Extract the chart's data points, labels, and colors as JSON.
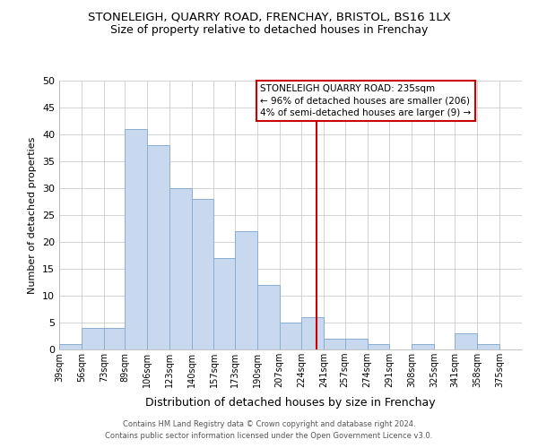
{
  "title": "STONELEIGH, QUARRY ROAD, FRENCHAY, BRISTOL, BS16 1LX",
  "subtitle": "Size of property relative to detached houses in Frenchay",
  "xlabel": "Distribution of detached houses by size in Frenchay",
  "ylabel": "Number of detached properties",
  "bins": [
    39,
    56,
    73,
    89,
    106,
    123,
    140,
    157,
    173,
    190,
    207,
    224,
    241,
    257,
    274,
    291,
    308,
    325,
    341,
    358,
    375
  ],
  "bin_labels": [
    "39sqm",
    "56sqm",
    "73sqm",
    "89sqm",
    "106sqm",
    "123sqm",
    "140sqm",
    "157sqm",
    "173sqm",
    "190sqm",
    "207sqm",
    "224sqm",
    "241sqm",
    "257sqm",
    "274sqm",
    "291sqm",
    "308sqm",
    "325sqm",
    "341sqm",
    "358sqm",
    "375sqm"
  ],
  "values": [
    1,
    4,
    4,
    41,
    38,
    30,
    28,
    17,
    22,
    12,
    5,
    6,
    2,
    2,
    1,
    0,
    1,
    0,
    3,
    1,
    0
  ],
  "bar_color": "#c8d9ef",
  "bar_edge_color": "#88aed0",
  "vline_x": 235,
  "vline_color": "#cc0000",
  "ylim": [
    0,
    50
  ],
  "yticks": [
    0,
    5,
    10,
    15,
    20,
    25,
    30,
    35,
    40,
    45,
    50
  ],
  "annotation_title": "STONELEIGH QUARRY ROAD: 235sqm",
  "annotation_line1": "← 96% of detached houses are smaller (206)",
  "annotation_line2": "4% of semi-detached houses are larger (9) →",
  "annotation_box_color": "#ffffff",
  "annotation_box_edge": "#cc0000",
  "footer1": "Contains HM Land Registry data © Crown copyright and database right 2024.",
  "footer2": "Contains public sector information licensed under the Open Government Licence v3.0.",
  "bg_color": "#ffffff",
  "grid_color": "#cccccc",
  "title_fontsize": 9.5,
  "subtitle_fontsize": 9,
  "ylabel_fontsize": 8,
  "xlabel_fontsize": 9,
  "ytick_fontsize": 8,
  "xtick_fontsize": 7
}
